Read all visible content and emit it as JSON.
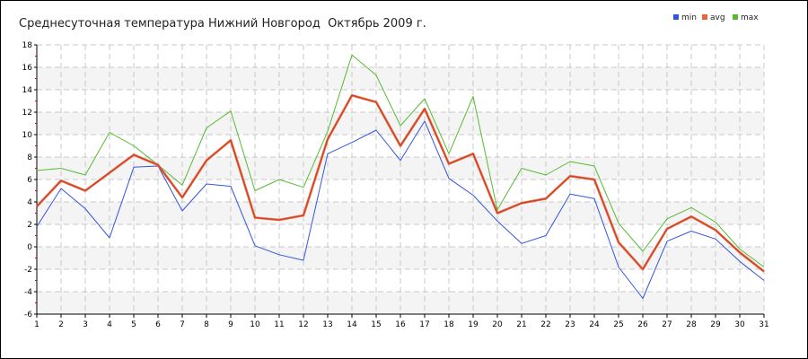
{
  "chart_data": {
    "type": "line",
    "title": "Среднесуточная температура Нижний Новгород  Октябрь 2009 г.",
    "x": [
      1,
      2,
      3,
      4,
      5,
      6,
      7,
      8,
      9,
      10,
      11,
      12,
      13,
      14,
      15,
      16,
      17,
      18,
      19,
      20,
      21,
      22,
      23,
      24,
      25,
      26,
      27,
      28,
      29,
      30,
      31
    ],
    "ylim": [
      -6,
      18
    ],
    "yticks": [
      -6,
      -4,
      -2,
      0,
      2,
      4,
      6,
      8,
      10,
      12,
      14,
      16,
      18
    ],
    "grid": true,
    "legend_position": "top-right",
    "series": [
      {
        "name": "min",
        "color": "#3355dd",
        "values": [
          1.8,
          5.2,
          3.4,
          0.8,
          7.1,
          7.2,
          3.2,
          5.6,
          5.4,
          0.1,
          -0.7,
          -1.2,
          8.3,
          9.3,
          10.4,
          7.7,
          11.2,
          6.1,
          4.6,
          2.3,
          0.3,
          1.0,
          4.7,
          4.3,
          -1.8,
          -4.6,
          0.5,
          1.4,
          0.7,
          -1.3,
          -3.0
        ]
      },
      {
        "name": "avg",
        "color": "#e8653a",
        "values": [
          3.6,
          5.9,
          5.0,
          6.6,
          8.2,
          7.3,
          4.4,
          7.7,
          9.5,
          2.6,
          2.4,
          2.8,
          9.6,
          13.5,
          12.9,
          9.0,
          12.3,
          7.4,
          8.3,
          3.0,
          3.9,
          4.3,
          6.3,
          6.0,
          0.4,
          -2.0,
          1.6,
          2.7,
          1.5,
          -0.5,
          -2.2
        ]
      },
      {
        "name": "max",
        "color": "#55bb33",
        "values": [
          6.8,
          7.0,
          6.4,
          10.2,
          9.0,
          7.3,
          5.5,
          10.6,
          12.1,
          5.0,
          6.0,
          5.3,
          10.3,
          17.1,
          15.3,
          10.8,
          13.2,
          8.3,
          13.4,
          3.3,
          7.0,
          6.4,
          7.6,
          7.2,
          2.1,
          -0.4,
          2.5,
          3.5,
          2.2,
          -0.2,
          -1.8
        ]
      }
    ]
  }
}
